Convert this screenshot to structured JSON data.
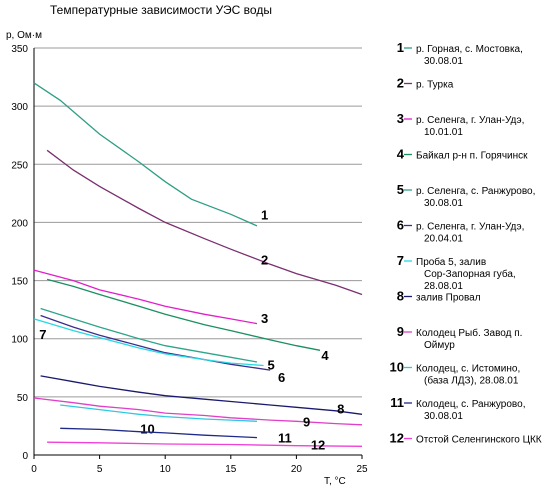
{
  "chart_data": {
    "type": "line",
    "title": "Температурные зависимости УЭС воды",
    "ylabel": "р, Ом·м",
    "xlabel": "Т, °С",
    "xlim": [
      0,
      25
    ],
    "ylim": [
      0,
      350
    ],
    "xticks": [
      0,
      5,
      10,
      15,
      20,
      25
    ],
    "yticks": [
      0,
      50,
      100,
      150,
      200,
      250,
      300,
      350
    ],
    "grid": "horizontal",
    "legend_position": "right",
    "series": [
      {
        "id": "1",
        "name": "р. Горная, с. Мостовка, 30.08.01",
        "color": "#2e9e84",
        "x": [
          0,
          2,
          5,
          8,
          10,
          12,
          15,
          17
        ],
        "y": [
          320,
          305,
          276,
          252,
          235,
          220,
          207,
          197
        ],
        "label_at": [
          17.3,
          207
        ]
      },
      {
        "id": "2",
        "name": "р. Турка",
        "color": "#7a2f6f",
        "x": [
          1,
          3,
          5,
          8,
          10,
          13,
          15,
          18,
          20,
          23,
          25
        ],
        "y": [
          262,
          245,
          231,
          212,
          200,
          186,
          177,
          164,
          156,
          146,
          138
        ],
        "label_at": [
          17.3,
          168
        ]
      },
      {
        "id": "3",
        "name": "р. Селенга, г. Улан-Удэ, 10.01.01",
        "color": "#e020c8",
        "x": [
          0,
          3,
          5,
          8,
          10,
          13,
          15,
          17
        ],
        "y": [
          159,
          150,
          142,
          134,
          128,
          121,
          117,
          113
        ],
        "label_at": [
          17.3,
          118
        ]
      },
      {
        "id": "4",
        "name": "Байкал р-н п. Горячинск",
        "color": "#1a8f60",
        "x": [
          1,
          3,
          5,
          8,
          10,
          13,
          15,
          18,
          20,
          21.8
        ],
        "y": [
          151,
          145,
          138,
          128,
          121,
          112,
          107,
          99,
          94,
          90
        ],
        "label_at": [
          21.9,
          86
        ]
      },
      {
        "id": "5",
        "name": "р. Селенга, с. Ранжурово, 30.08.01",
        "color": "#2ea58a",
        "x": [
          0.5,
          3,
          5,
          8,
          10,
          13,
          15,
          17
        ],
        "y": [
          126,
          117,
          110,
          100,
          94,
          88,
          84,
          80
        ],
        "label_at": [
          17.8,
          78
        ]
      },
      {
        "id": "6",
        "name": "р. Селенга, г. Улан-Удэ, 20.04.01",
        "color": "#3c2d8c",
        "x": [
          0.5,
          3,
          5,
          8,
          10,
          13,
          15,
          18
        ],
        "y": [
          120,
          110,
          103,
          94,
          88,
          82,
          78,
          73
        ],
        "label_at": [
          18.6,
          67
        ]
      },
      {
        "id": "7",
        "name": "Проба 5, залив Сор-Запорная губа, 28.08.01",
        "color": "#25d8e2",
        "x": [
          0,
          3,
          5,
          8,
          10,
          13,
          15,
          17.5
        ],
        "y": [
          117,
          107,
          101,
          92,
          87,
          82,
          79,
          77
        ],
        "label_at": [
          0.4,
          104
        ]
      },
      {
        "id": "8",
        "name": "залив Провал",
        "color": "#1a1a6e",
        "x": [
          0.5,
          3,
          5,
          8,
          10,
          13,
          15,
          18,
          20,
          23,
          25
        ],
        "y": [
          68,
          63,
          59,
          54,
          51,
          48,
          46,
          43,
          41,
          38,
          35
        ],
        "label_at": [
          23.1,
          40
        ]
      },
      {
        "id": "9",
        "name": "Колодец Рыб. Завод п. Оймур",
        "color": "#e040c8",
        "x": [
          0,
          3,
          5,
          8,
          10,
          13,
          15,
          18,
          20,
          23,
          25
        ],
        "y": [
          49,
          45,
          42,
          39,
          36,
          34,
          32,
          30,
          29,
          27,
          26
        ],
        "label_at": [
          20.5,
          29
        ]
      },
      {
        "id": "10",
        "name": "Колодец, с. Истомино, (база ЛДЗ), 28.08.01",
        "color": "#30c8e0",
        "x": [
          2,
          5,
          8,
          10,
          13,
          15,
          17
        ],
        "y": [
          43,
          39,
          35,
          33,
          31,
          30,
          29
        ],
        "label_at": [
          8.1,
          23
        ]
      },
      {
        "id": "11",
        "name": "Колодец, с. Ранжурово, 30.08.01",
        "color": "#1e2a88",
        "x": [
          2,
          5,
          8,
          10,
          13,
          15,
          17
        ],
        "y": [
          23,
          22,
          20,
          19,
          17,
          16,
          15
        ],
        "label_at": [
          18.6,
          15
        ]
      },
      {
        "id": "12",
        "name": "Отстой Селенгинского ЦКК",
        "color": "#f040d8",
        "x": [
          1,
          5,
          10,
          15,
          20,
          25
        ],
        "y": [
          11,
          10.5,
          9.5,
          9,
          8,
          7.5
        ],
        "label_at": [
          21.1,
          9
        ]
      }
    ]
  }
}
